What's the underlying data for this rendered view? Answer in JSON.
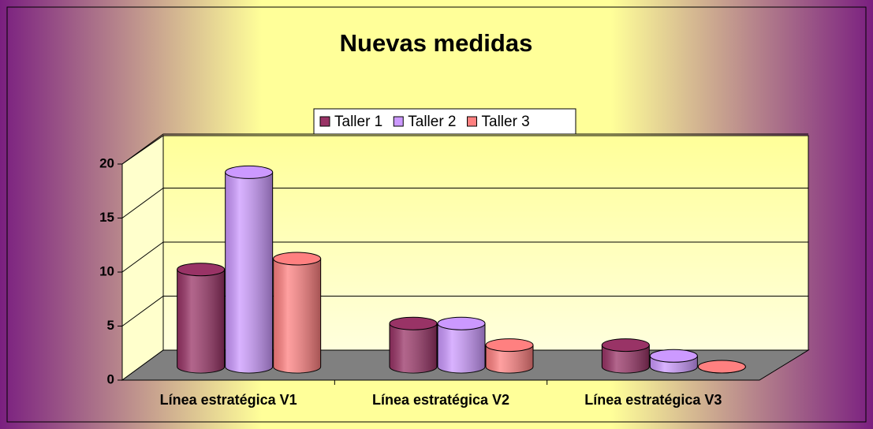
{
  "chart_data": {
    "type": "bar3d",
    "title": "Nuevas medidas",
    "categories": [
      "Línea estratégica V1",
      "Línea estratégica V2",
      "Línea estratégica V3"
    ],
    "series": [
      {
        "name": "Taller 1",
        "color": "#993366",
        "values": [
          9,
          4,
          2
        ]
      },
      {
        "name": "Taller 2",
        "color": "#cc99ff",
        "values": [
          18,
          4,
          1
        ]
      },
      {
        "name": "Taller 3",
        "color": "#ff8080",
        "values": [
          10,
          2,
          0
        ]
      }
    ],
    "ylim": [
      0,
      20
    ],
    "yticks": [
      0,
      5,
      10,
      15,
      20
    ],
    "grid": true,
    "legend": "top"
  }
}
